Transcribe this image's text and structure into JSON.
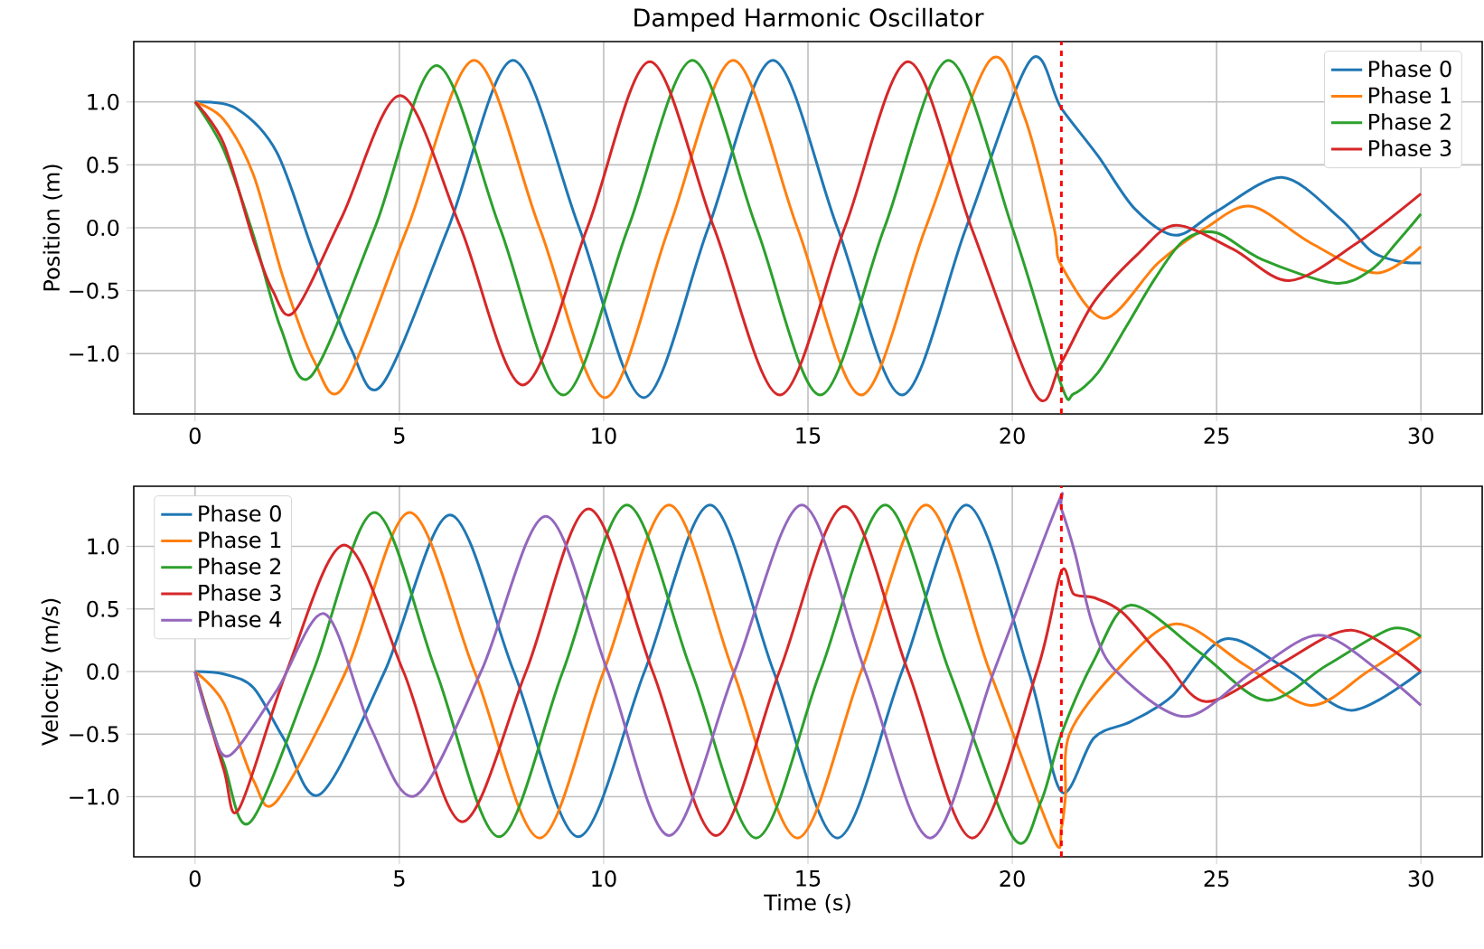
{
  "chart_data": [
    {
      "type": "line",
      "title": "Damped Harmonic Oscillator",
      "ylabel": "Position (m)",
      "xlim": [
        -1.5,
        31.5
      ],
      "ylim": [
        -1.48,
        1.48
      ],
      "xticks": [
        0,
        5,
        10,
        15,
        20,
        25,
        30
      ],
      "yticks": [
        {
          "value": -1,
          "label": "−1.0"
        },
        {
          "value": -0.5,
          "label": "−0.5"
        },
        {
          "value": 0,
          "label": "0.0"
        },
        {
          "value": 0.5,
          "label": "0.5"
        },
        {
          "value": 1,
          "label": "1.0"
        }
      ],
      "grid": true,
      "legend": "top right",
      "marker": "none",
      "line_style": "solid",
      "ref_lines": [
        {
          "axis": "x",
          "value": 21.2,
          "color": "#ff0000",
          "line_style": "dashed"
        }
      ],
      "series": [
        {
          "name": "Phase 0",
          "color": "#1f77b4",
          "x": [
            0,
            1,
            2,
            2.9,
            3.8,
            4.57,
            6.2,
            7.78,
            9.4,
            10.98,
            12.56,
            14.14,
            15.72,
            17.3,
            18.87,
            20.44,
            21.2,
            22.1,
            23,
            24,
            25,
            26.6,
            28,
            28.8,
            29.5,
            30
          ],
          "values": [
            1,
            0.95,
            0.6,
            -0.2,
            -0.95,
            -1.25,
            0,
            1.33,
            0,
            -1.35,
            0,
            1.33,
            0,
            -1.33,
            0,
            1.33,
            0.95,
            0.57,
            0.15,
            -0.06,
            0.13,
            0.4,
            0.08,
            -0.19,
            -0.27,
            -0.28
          ]
        },
        {
          "name": "Phase 1",
          "color": "#ff7f0e",
          "x": [
            0,
            0.7,
            1.43,
            2.16,
            2.9,
            3.62,
            5.2,
            6.83,
            8.43,
            10.03,
            11.6,
            13.17,
            14.74,
            16.3,
            17.88,
            19.45,
            20.3,
            21.02,
            21.2,
            22.26,
            23.57,
            24.74,
            25.85,
            27.3,
            28.9,
            30
          ],
          "values": [
            1,
            0.86,
            0.42,
            -0.4,
            -1.05,
            -1.27,
            0,
            1.33,
            0,
            -1.35,
            0,
            1.33,
            0,
            -1.33,
            0,
            1.33,
            0.88,
            0,
            -0.3,
            -0.72,
            -0.28,
            0,
            0.17,
            -0.12,
            -0.36,
            -0.15
          ]
        },
        {
          "name": "Phase 2",
          "color": "#2ca02c",
          "x": [
            0,
            0.7,
            1.43,
            2.1,
            2.84,
            4.4,
            5.91,
            7.46,
            9.01,
            10.6,
            12.17,
            13.74,
            15.3,
            16.87,
            18.44,
            20.0,
            21.2,
            21.5,
            22.1,
            22.8,
            23.5,
            24.2,
            25.0,
            26.1,
            27.9,
            28.8,
            29.4,
            30
          ],
          "values": [
            1,
            0.62,
            -0.06,
            -0.8,
            -1.18,
            0,
            1.29,
            0,
            -1.33,
            0,
            1.33,
            0,
            -1.33,
            0,
            1.33,
            0,
            -1.25,
            -1.32,
            -1.15,
            -0.78,
            -0.4,
            -0.1,
            -0.04,
            -0.25,
            -0.44,
            -0.33,
            -0.12,
            0.11
          ]
        },
        {
          "name": "Phase 3",
          "color": "#d62728",
          "x": [
            0,
            0.7,
            1.43,
            1.9,
            2.42,
            3.6,
            5.03,
            6.5,
            8.02,
            9.6,
            11.13,
            12.7,
            14.31,
            15.9,
            17.45,
            19.0,
            20.58,
            21.2,
            22.0,
            23.1,
            24.0,
            25.4,
            26.78,
            28.4,
            30
          ],
          "values": [
            1,
            0.67,
            -0.1,
            -0.5,
            -0.67,
            0.09,
            1.05,
            0,
            -1.25,
            0,
            1.32,
            0,
            -1.33,
            0,
            1.32,
            0,
            -1.33,
            -1.07,
            -0.59,
            -0.2,
            0.02,
            -0.17,
            -0.42,
            -0.13,
            0.27
          ]
        }
      ]
    },
    {
      "type": "line",
      "xlabel": "Time (s)",
      "ylabel": "Velocity (m/s)",
      "xlim": [
        -1.5,
        31.5
      ],
      "ylim": [
        -1.48,
        1.48
      ],
      "xticks": [
        0,
        5,
        10,
        15,
        20,
        25,
        30
      ],
      "yticks": [
        {
          "value": -1,
          "label": "−1.0"
        },
        {
          "value": -0.5,
          "label": "−0.5"
        },
        {
          "value": 0,
          "label": "0.0"
        },
        {
          "value": 0.5,
          "label": "0.5"
        },
        {
          "value": 1,
          "label": "1.0"
        }
      ],
      "grid": true,
      "legend": "top left",
      "marker": "none",
      "line_style": "solid",
      "ref_lines": [
        {
          "axis": "x",
          "value": 21.2,
          "color": "#ff0000",
          "line_style": "dashed"
        }
      ],
      "series": [
        {
          "name": "Phase 0",
          "color": "#1f77b4",
          "x": [
            0,
            0.7,
            1.43,
            2.16,
            3.06,
            4.64,
            6.24,
            7.8,
            9.38,
            11.0,
            12.6,
            14.16,
            15.72,
            17.3,
            18.88,
            20.4,
            21.2,
            22.0,
            22.9,
            23.9,
            25.2,
            26.8,
            28.3,
            30
          ],
          "values": [
            0,
            -0.02,
            -0.13,
            -0.53,
            -0.98,
            0,
            1.25,
            0,
            -1.32,
            0,
            1.33,
            0,
            -1.33,
            0,
            1.33,
            0,
            -0.96,
            -0.53,
            -0.4,
            -0.2,
            0.26,
            0,
            -0.31,
            0
          ]
        },
        {
          "name": "Phase 1",
          "color": "#ff7f0e",
          "x": [
            0,
            0.7,
            1.43,
            2.01,
            3.69,
            5.25,
            6.84,
            8.43,
            10.0,
            11.6,
            13.17,
            14.74,
            16.3,
            17.89,
            19.45,
            21.0,
            21.2,
            21.3,
            21.4,
            22.5,
            24.0,
            25.7,
            27.3,
            28.7,
            30
          ],
          "values": [
            0,
            -0.25,
            -0.87,
            -1.03,
            0,
            1.27,
            0,
            -1.33,
            0,
            1.33,
            0,
            -1.33,
            0,
            1.33,
            0,
            -1.33,
            -1.25,
            -1.0,
            -0.5,
            -0.01,
            0.38,
            0.05,
            -0.27,
            0,
            0.28
          ]
        },
        {
          "name": "Phase 2",
          "color": "#2ca02c",
          "x": [
            0,
            0.7,
            1.36,
            2.89,
            4.39,
            5.9,
            7.44,
            9.0,
            10.57,
            12.15,
            13.73,
            15.3,
            16.89,
            18.46,
            20.03,
            20.7,
            21.2,
            22.0,
            22.9,
            24.6,
            26.2,
            27.7,
            29.26,
            30
          ],
          "values": [
            0,
            -0.73,
            -1.2,
            0,
            1.27,
            0,
            -1.32,
            0,
            1.33,
            0,
            -1.33,
            0,
            1.33,
            0,
            -1.33,
            -1.04,
            -0.5,
            0.09,
            0.53,
            0.15,
            -0.23,
            0.05,
            0.34,
            0.28
          ]
        },
        {
          "name": "Phase 3",
          "color": "#d62728",
          "x": [
            0,
            0.7,
            1.07,
            2.24,
            3.65,
            5.1,
            6.54,
            8.1,
            9.63,
            11.2,
            12.75,
            14.3,
            15.89,
            17.45,
            19.02,
            20.6,
            21.2,
            21.5,
            22.0,
            22.7,
            23.7,
            24.74,
            26.5,
            28.3,
            30
          ],
          "values": [
            0,
            -0.78,
            -1.1,
            0,
            1.01,
            0,
            -1.2,
            0,
            1.3,
            0,
            -1.31,
            0,
            1.32,
            0,
            -1.33,
            0,
            0.8,
            0.62,
            0.59,
            0.47,
            0.1,
            -0.24,
            0.05,
            0.33,
            0
          ]
        },
        {
          "name": "Phase 4",
          "color": "#9467bd",
          "x": [
            0,
            0.4,
            0.85,
            2.0,
            3.18,
            4.3,
            5.4,
            7.0,
            8.58,
            10.1,
            11.6,
            13.2,
            14.85,
            16.4,
            17.99,
            19.55,
            21.1,
            21.2,
            21.53,
            21.97,
            22.55,
            24.23,
            25.9,
            27.5,
            29.0,
            30
          ],
          "values": [
            0,
            -0.45,
            -0.67,
            -0.15,
            0.46,
            -0.45,
            -0.99,
            0,
            1.24,
            0,
            -1.31,
            0,
            1.33,
            0,
            -1.33,
            0,
            1.33,
            1.3,
            0.95,
            0.37,
            0,
            -0.36,
            0,
            0.29,
            0,
            -0.27
          ]
        }
      ]
    }
  ]
}
